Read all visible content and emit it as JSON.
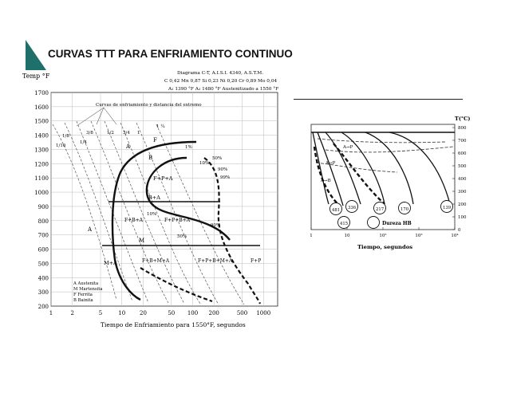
{
  "slide": {
    "title": "CURVAS TTT PARA ENFRIAMIENTO CONTINUO",
    "accent_color": "#1f6f6a"
  },
  "left_chart": {
    "y_axis_label": "Temp °F",
    "header_line1": "Diagrama C-T, A.I.S.I. 4340, A.S.T.M.",
    "header_line2": "C 0,42   Mn 0,87   Si 0,23   Ni 0,20   Cr 0,89   Mo 0,04",
    "header_line3": "A₁ 1390 °F   A₃ 1480 °F      Austenitizado a 1550 °F",
    "callout": "Curvas de enfriamiento y distancia del extremo",
    "y_ticks": [
      "1700",
      "1600",
      "1500",
      "1400",
      "1300",
      "1200",
      "1100",
      "1000",
      "900",
      "800",
      "700",
      "600",
      "500",
      "400",
      "300",
      "200"
    ],
    "x_ticks": [
      "1",
      "2",
      "5",
      "10",
      "20",
      "50",
      "100",
      "200",
      "500",
      "1000"
    ],
    "x_axis_label": "Tiempo de Enfriamiento para 1550°F, segundos",
    "distances": [
      "1/16",
      "1/8",
      "1/4",
      "3/8",
      "1/2",
      "3/4",
      "1",
      "1 ¼"
    ],
    "regions": [
      "A",
      "F",
      "F+P+A",
      "B",
      "B+A",
      "F+B+A",
      "F+P+B+A",
      "M",
      "M+A",
      "F+B+M+A",
      "F+P+B+M+A",
      "F+P"
    ],
    "percents": [
      "1%",
      "10%",
      "50%",
      "90%",
      "99%",
      "10%",
      "90%",
      "50%"
    ],
    "legend": [
      "A Austenita",
      "M Martensita",
      "F Ferrita",
      "B Bainita"
    ]
  },
  "right_chart": {
    "y_axis_title": "T(°C)",
    "y_ticks": [
      "800",
      "700",
      "600",
      "500",
      "400",
      "300",
      "200",
      "100",
      "0"
    ],
    "x_ticks": [
      "1",
      "10",
      "10²",
      "10³",
      "10⁴"
    ],
    "x_axis_label": "Tiempo, segundos",
    "regions": [
      "A→P",
      "A→P",
      "A→B"
    ],
    "hardness_values": [
      "481",
      "415",
      "336",
      "217",
      "170",
      "139"
    ],
    "hardness_legend": "Dureza HB"
  }
}
